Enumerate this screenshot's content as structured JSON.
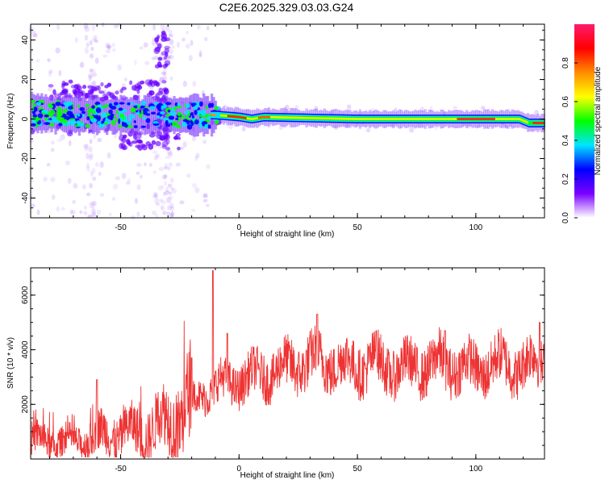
{
  "title": "C2E6.2025.329.03.03.G24",
  "chart_data": [
    {
      "type": "heatmap",
      "xlabel": "Height of straight line (km)",
      "ylabel": "Frequency (Hz)",
      "xlim": [
        -88,
        129
      ],
      "ylim": [
        -50,
        48
      ],
      "xticks": [
        -50,
        0,
        50,
        100
      ],
      "yticks": [
        -40,
        -20,
        0,
        20,
        40
      ],
      "ridge": [
        {
          "x": -88,
          "y": 3
        },
        {
          "x": -60,
          "y": 2
        },
        {
          "x": -30,
          "y": 2
        },
        {
          "x": -10,
          "y": 2
        },
        {
          "x": 0,
          "y": 1
        },
        {
          "x": 5,
          "y": 0
        },
        {
          "x": 10,
          "y": 1
        },
        {
          "x": 50,
          "y": 0
        },
        {
          "x": 100,
          "y": 0
        },
        {
          "x": 118,
          "y": 0
        },
        {
          "x": 122,
          "y": -2
        },
        {
          "x": 129,
          "y": -2
        }
      ],
      "colorbar": {
        "label": "Normalized spectral amplitude",
        "range": [
          0,
          1
        ],
        "ticks": [
          0.0,
          0.2,
          0.4,
          0.6,
          0.8
        ],
        "tick_labels": [
          "0.0",
          "0.2",
          "0.4",
          "0.6",
          "0.8"
        ],
        "colors": [
          "#ffffff",
          "#7b00ff",
          "#0000ff",
          "#00e5ff",
          "#00ff00",
          "#ffff00",
          "#ff8c00",
          "#ff0000",
          "#ff1a6e"
        ]
      }
    },
    {
      "type": "line",
      "xlabel": "Height of straight line (km)",
      "ylabel": "SNR (10 * v/v)",
      "xlim": [
        -88,
        129
      ],
      "ylim": [
        0,
        7000
      ],
      "xticks": [
        -50,
        0,
        50,
        100
      ],
      "yticks": [
        2000,
        4000,
        6000
      ],
      "series": [
        {
          "name": "SNR",
          "color": "#ee3333",
          "envelope": [
            {
              "x": -88,
              "y": 700
            },
            {
              "x": -70,
              "y": 600
            },
            {
              "x": -57,
              "y": 900
            },
            {
              "x": -40,
              "y": 1000
            },
            {
              "x": -28,
              "y": 1500
            },
            {
              "x": -18,
              "y": 2200
            },
            {
              "x": -10,
              "y": 2700
            },
            {
              "x": -2,
              "y": 2800
            },
            {
              "x": 5,
              "y": 3000
            },
            {
              "x": 15,
              "y": 3200
            },
            {
              "x": 25,
              "y": 3500
            },
            {
              "x": 35,
              "y": 3600
            },
            {
              "x": 45,
              "y": 3400
            },
            {
              "x": 55,
              "y": 3500
            },
            {
              "x": 70,
              "y": 3300
            },
            {
              "x": 85,
              "y": 3500
            },
            {
              "x": 100,
              "y": 3300
            },
            {
              "x": 110,
              "y": 3500
            },
            {
              "x": 120,
              "y": 3400
            },
            {
              "x": 129,
              "y": 3700
            }
          ],
          "spikes": [
            {
              "x": -60,
              "y": 2900
            },
            {
              "x": -20,
              "y": 3700
            },
            {
              "x": -11,
              "y": 6900
            },
            {
              "x": -5,
              "y": 4600
            },
            {
              "x": 33,
              "y": 5300
            },
            {
              "x": 58,
              "y": 4700
            },
            {
              "x": 87,
              "y": 4700
            },
            {
              "x": 127,
              "y": 5000
            }
          ]
        }
      ]
    }
  ]
}
